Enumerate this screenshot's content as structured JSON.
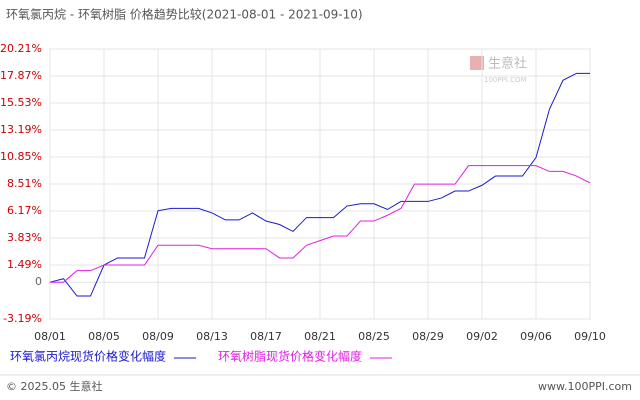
{
  "chart_data": {
    "type": "line",
    "title": "环氧氯丙烷 - 环氧树脂 价格趋势比较(2021-08-01 - 2021-09-10)",
    "categories": [
      "08/01",
      null,
      null,
      null,
      "08/05",
      null,
      null,
      null,
      "08/09",
      null,
      null,
      null,
      "08/13",
      null,
      null,
      null,
      "08/17",
      null,
      null,
      null,
      "08/21",
      null,
      null,
      null,
      "08/25",
      null,
      null,
      null,
      "08/29",
      null,
      null,
      null,
      "09/02",
      null,
      null,
      null,
      "09/06",
      null,
      null,
      null,
      "09/10"
    ],
    "series": [
      {
        "name": "环氧氯丙烷现货价格变化幅度",
        "color": "#1a1acc",
        "values": [
          0,
          0.3,
          -1.2,
          -1.2,
          1.49,
          2.1,
          2.1,
          2.1,
          6.2,
          6.4,
          6.4,
          6.4,
          6.0,
          5.4,
          5.4,
          6.0,
          5.3,
          5.0,
          4.4,
          5.6,
          5.6,
          5.6,
          6.6,
          6.8,
          6.8,
          6.3,
          7.0,
          7.0,
          7.0,
          7.3,
          7.9,
          7.9,
          8.4,
          9.2,
          9.2,
          9.2,
          10.8,
          15.0,
          17.5,
          18.1,
          18.1
        ]
      },
      {
        "name": "环氧树脂现货价格变化幅度",
        "color": "#e020e0",
        "values": [
          0,
          0,
          1.0,
          1.0,
          1.49,
          1.49,
          1.49,
          1.49,
          3.2,
          3.2,
          3.2,
          3.2,
          2.9,
          2.9,
          2.9,
          2.9,
          2.9,
          2.1,
          2.1,
          3.2,
          3.6,
          4.0,
          4.0,
          5.3,
          5.3,
          5.8,
          6.4,
          8.5,
          8.5,
          8.5,
          8.5,
          10.1,
          10.1,
          10.1,
          10.1,
          10.1,
          10.1,
          9.6,
          9.6,
          9.2,
          8.6
        ]
      }
    ],
    "ylim": [
      -3.19,
      20.21
    ],
    "yticks": [
      {
        "value": -3.19,
        "label": "-3.19%"
      },
      0,
      {
        "value": 1.49,
        "label": "1.49%"
      },
      {
        "value": 3.83,
        "label": "3.83%"
      },
      {
        "value": 6.17,
        "label": "6.17%"
      },
      {
        "value": 8.51,
        "label": "8.51%"
      },
      {
        "value": 10.85,
        "label": "10.85%"
      },
      {
        "value": 13.19,
        "label": "13.19%"
      },
      {
        "value": 15.53,
        "label": "15.53%"
      },
      {
        "value": 17.87,
        "label": "17.87%"
      },
      {
        "value": 20.21,
        "label": "20.21%"
      }
    ],
    "grid": true,
    "watermark": {
      "brand": "生意社",
      "site": "100PPI.COM"
    },
    "footer": {
      "left": "© 2025.05 生意社",
      "right": "www.100PPI.com"
    }
  }
}
